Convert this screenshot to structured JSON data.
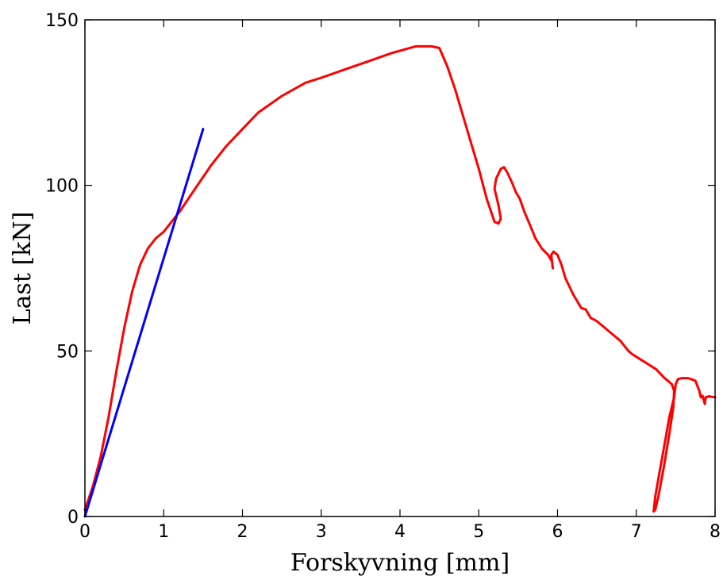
{
  "chart_data": {
    "type": "line",
    "title": "",
    "xlabel": "Forskyvning [mm]",
    "ylabel": "Last [kN]",
    "xlim": [
      0,
      8
    ],
    "ylim": [
      0,
      150
    ],
    "x_ticks": [
      0,
      1,
      2,
      3,
      4,
      5,
      6,
      7,
      8
    ],
    "y_ticks": [
      0,
      50,
      100,
      150
    ],
    "grid": false,
    "legend": "none",
    "series": [
      {
        "color": "#ff0000",
        "x": [
          0.0,
          0.1,
          0.2,
          0.3,
          0.4,
          0.5,
          0.6,
          0.7,
          0.8,
          0.9,
          1.0,
          1.1,
          1.2,
          1.4,
          1.6,
          1.8,
          2.0,
          2.2,
          2.5,
          2.8,
          3.0,
          3.3,
          3.6,
          3.9,
          4.2,
          4.4,
          4.5,
          4.6,
          4.7,
          4.8,
          4.9,
          5.0,
          5.1,
          5.2,
          5.25,
          5.28,
          5.25,
          5.2,
          5.22,
          5.28,
          5.32,
          5.36,
          5.42,
          5.47,
          5.52,
          5.58,
          5.65,
          5.72,
          5.8,
          5.88,
          5.93,
          5.94,
          5.92,
          5.95,
          6.0,
          6.05,
          6.1,
          6.2,
          6.3,
          6.36,
          6.42,
          6.5,
          6.6,
          6.7,
          6.8,
          6.9,
          6.95,
          7.05,
          7.15,
          7.25,
          7.35,
          7.45,
          7.48,
          7.47,
          7.42,
          7.35,
          7.28,
          7.24,
          7.22,
          7.24,
          7.3,
          7.36,
          7.42,
          7.48,
          7.5,
          7.53,
          7.58,
          7.66,
          7.75,
          7.8,
          7.82,
          7.84,
          7.87,
          7.88,
          7.92,
          8.0
        ],
        "y": [
          2,
          9,
          18,
          30,
          44,
          57,
          68,
          76,
          81,
          84,
          86,
          89,
          92,
          99,
          106,
          112,
          117,
          122,
          127,
          131,
          132.5,
          135,
          137.5,
          140,
          142,
          142,
          141.5,
          136,
          129,
          121,
          113,
          105,
          96,
          89,
          88.5,
          90,
          94,
          99,
          102,
          105,
          105.5,
          104,
          101,
          98,
          96,
          92,
          88,
          84,
          81,
          79,
          77,
          75,
          79,
          80,
          79,
          76,
          72,
          67,
          63,
          62.5,
          60,
          59,
          57,
          55,
          53,
          50,
          49,
          47.5,
          46,
          44.5,
          42,
          40,
          38,
          33,
          25,
          15,
          6,
          2,
          1.5,
          6,
          14,
          22,
          30,
          36,
          40,
          41.5,
          41.8,
          41.8,
          41,
          38,
          36,
          36.5,
          34,
          36,
          36.3,
          36
        ]
      },
      {
        "color": "#0000ff",
        "x": [
          0.0,
          1.5
        ],
        "y": [
          0,
          117
        ]
      }
    ]
  }
}
